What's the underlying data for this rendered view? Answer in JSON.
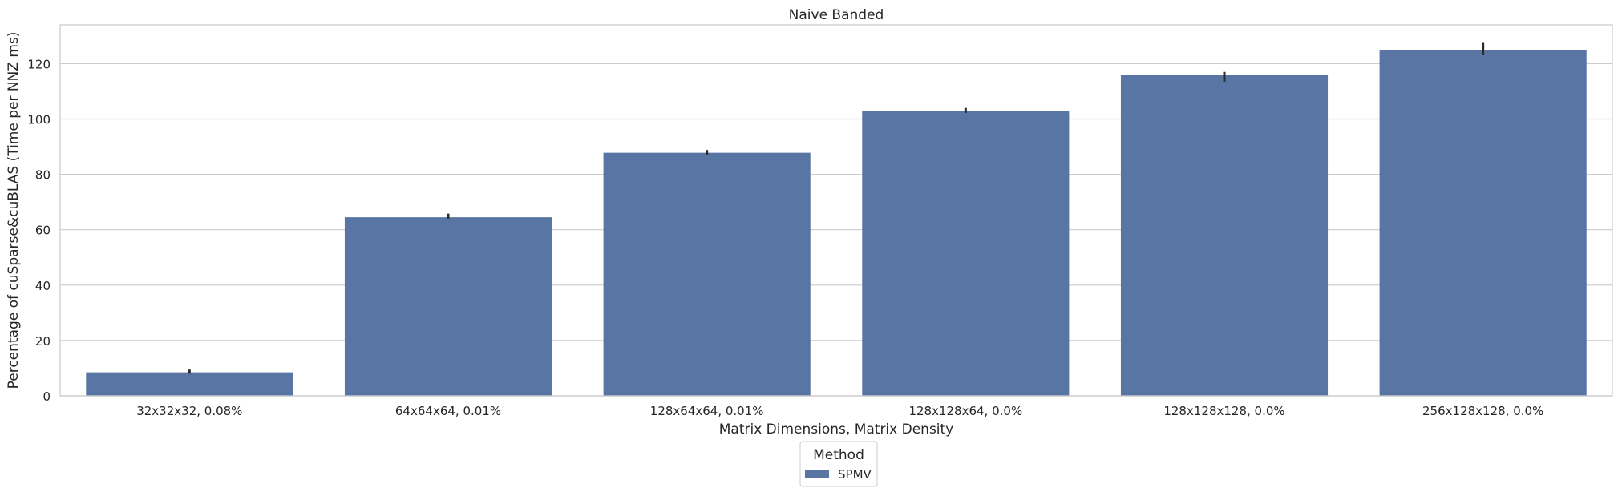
{
  "chart_data": {
    "type": "bar",
    "title": "Naive Banded",
    "xlabel": "Matrix Dimensions, Matrix Density",
    "ylabel": "Percentage of cuSparse&cuBLAS (Time per NNZ ms)",
    "categories": [
      "32x32x32, 0.08%",
      "64x64x64, 0.01%",
      "128x64x64, 0.01%",
      "128x128x64, 0.0%",
      "128x128x128, 0.0%",
      "256x128x128, 0.0%"
    ],
    "series": [
      {
        "name": "SPMV",
        "values": [
          8.5,
          64.5,
          87.8,
          102.8,
          115.8,
          124.8
        ],
        "error_low": [
          8.0,
          64.0,
          87.0,
          102.2,
          113.5,
          123.0
        ],
        "error_high": [
          9.5,
          65.8,
          88.8,
          104.0,
          117.0,
          127.5
        ]
      }
    ],
    "ylim": [
      0,
      134
    ],
    "yticks": [
      0,
      20,
      40,
      60,
      80,
      100,
      120
    ],
    "grid": true,
    "legend": {
      "title": "Method",
      "position": "bottom-center"
    },
    "colors": {
      "bar": "#5875a4",
      "errorbar": "#2b2b2b",
      "grid": "#cccccc",
      "axes": "#cccccc"
    }
  }
}
